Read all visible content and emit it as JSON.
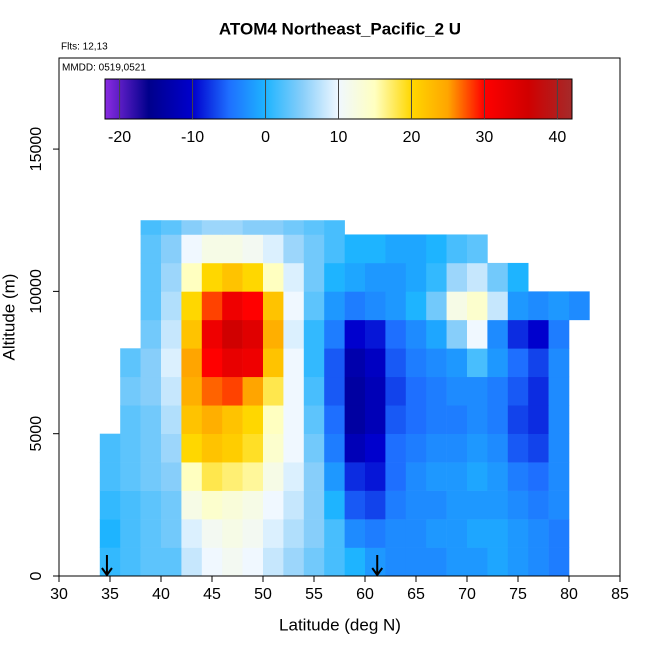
{
  "chart_data": {
    "type": "heatmap",
    "title": "ATOM4 Northeast_Pacific_2 U",
    "subtitle": "Flts: 12,13",
    "annotation": "MMDD: 0519,0521",
    "xlabel": "Latitude (deg N)",
    "ylabel": "Altitude (m)",
    "xlim": [
      30,
      85
    ],
    "ylim": [
      0,
      18200
    ],
    "xticks": [
      30,
      35,
      40,
      45,
      50,
      55,
      60,
      65,
      70,
      75,
      80,
      85
    ],
    "yticks": [
      0,
      5000,
      10000,
      15000
    ],
    "x_bins": [
      34,
      36,
      38,
      40,
      42,
      44,
      46,
      48,
      50,
      52,
      54,
      56,
      58,
      60,
      62,
      64,
      66,
      68,
      70,
      72,
      74,
      76,
      78,
      80,
      82
    ],
    "y_bins": [
      0,
      1000,
      2000,
      3000,
      4000,
      5000,
      6000,
      7000,
      8000,
      9000,
      10000,
      11000,
      12000,
      12500
    ],
    "z": [
      [
        1,
        2,
        3,
        3,
        8,
        10,
        11,
        10,
        8,
        6,
        4,
        2,
        0,
        -2,
        -3,
        -3,
        -3,
        -2,
        -2,
        -1,
        -2,
        -3,
        -4,
        null
      ],
      [
        0,
        2,
        3,
        4,
        9,
        11,
        12,
        11,
        9,
        7,
        5,
        2,
        -3,
        -4,
        -3,
        -3,
        -2,
        -2,
        -1,
        -1,
        -2,
        -3,
        -4,
        null
      ],
      [
        1,
        2,
        3,
        4,
        12,
        14,
        13,
        12,
        10,
        8,
        5,
        0,
        -6,
        -7,
        -4,
        -3,
        -3,
        -2,
        -2,
        -2,
        -3,
        -4,
        -3,
        null
      ],
      [
        2,
        3,
        4,
        5,
        15,
        18,
        17,
        16,
        12,
        9,
        5,
        -2,
        -8,
        -9,
        -5,
        -3,
        -2,
        -2,
        -1,
        -2,
        -4,
        -5,
        -3,
        null
      ],
      [
        2,
        3,
        4,
        6,
        20,
        22,
        21,
        19,
        14,
        10,
        4,
        -4,
        -12,
        -10,
        -5,
        -4,
        -3,
        -3,
        -2,
        -3,
        -6,
        -7,
        -3,
        null
      ],
      [
        null,
        3,
        4,
        7,
        22,
        24,
        22,
        20,
        15,
        10,
        3,
        -5,
        -14,
        -12,
        -6,
        -5,
        -4,
        -4,
        -3,
        -4,
        -7,
        -8,
        -3,
        null
      ],
      [
        null,
        4,
        5,
        8,
        24,
        27,
        28,
        25,
        18,
        10,
        2,
        -6,
        -14,
        -12,
        -7,
        -5,
        -4,
        -3,
        -3,
        -4,
        -6,
        -8,
        -3,
        null
      ],
      [
        null,
        3,
        5,
        9,
        25,
        30,
        33,
        32,
        22,
        10,
        1,
        -6,
        -13,
        -11,
        -6,
        -4,
        -3,
        -2,
        2,
        -2,
        -5,
        -7,
        -3,
        null
      ],
      [
        null,
        null,
        4,
        8,
        22,
        32,
        36,
        34,
        24,
        9,
        1,
        -4,
        -10,
        -9,
        -5,
        -3,
        -1,
        5,
        10,
        -3,
        -8,
        -10,
        -4,
        null
      ],
      [
        null,
        null,
        3,
        7,
        20,
        28,
        32,
        30,
        22,
        10,
        3,
        -2,
        -4,
        -3,
        -2,
        0,
        4,
        12,
        14,
        8,
        -2,
        -3,
        -2,
        -3
      ],
      [
        null,
        null,
        3,
        6,
        15,
        20,
        22,
        20,
        15,
        9,
        4,
        0,
        -1,
        -2,
        -2,
        -1,
        1,
        6,
        8,
        4,
        0,
        null,
        null,
        null
      ],
      [
        null,
        null,
        3,
        5,
        10,
        12,
        12,
        11,
        9,
        6,
        4,
        2,
        0,
        0,
        -1,
        -1,
        0,
        2,
        3,
        null,
        null,
        null,
        null,
        null
      ],
      [
        null,
        null,
        2,
        3,
        5,
        6,
        6,
        5,
        5,
        4,
        3,
        2,
        null,
        null,
        null,
        null,
        null,
        null,
        null,
        null,
        null,
        null,
        null,
        null
      ]
    ],
    "colorscale": [
      [
        -22,
        "#8a2be2"
      ],
      [
        -16,
        "#00008b"
      ],
      [
        -10,
        "#0000cd"
      ],
      [
        -5,
        "#1e6fff"
      ],
      [
        0,
        "#1eb4ff"
      ],
      [
        5,
        "#87cefa"
      ],
      [
        10,
        "#f0f8ff"
      ],
      [
        15,
        "#ffffc0"
      ],
      [
        20,
        "#ffd700"
      ],
      [
        25,
        "#ffa500"
      ],
      [
        30,
        "#ff0000"
      ],
      [
        36,
        "#d00000"
      ],
      [
        42,
        "#a52a2a"
      ]
    ],
    "colorbar_lim": [
      -22,
      42
    ],
    "colorbar_ticks": [
      -20,
      -10,
      0,
      10,
      20,
      30,
      40
    ],
    "markers": [
      34.7,
      61.2
    ]
  }
}
